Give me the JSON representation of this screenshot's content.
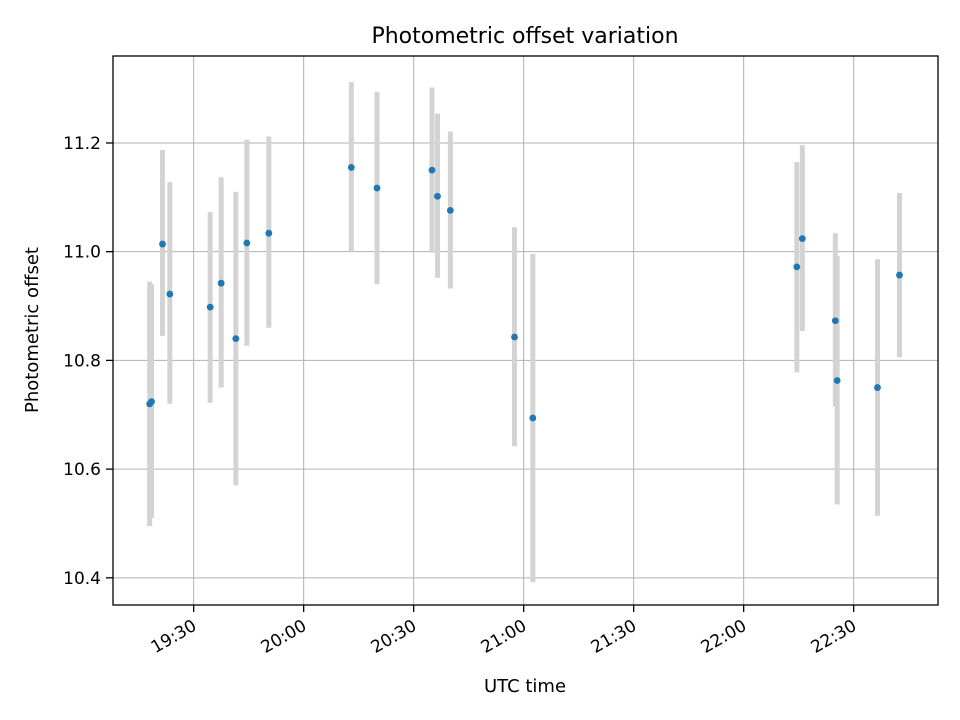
{
  "chart_data": {
    "type": "scatter",
    "title": "Photometric offset variation",
    "xlabel": "UTC time",
    "ylabel": "Photometric offset",
    "x_axis_type": "time",
    "xlim": [
      "19:08",
      "22:53"
    ],
    "ylim": [
      10.35,
      11.36
    ],
    "x_ticks": [
      "19:30",
      "20:00",
      "20:30",
      "21:00",
      "21:30",
      "22:00",
      "22:30"
    ],
    "y_ticks": [
      "10.4",
      "10.6",
      "10.8",
      "11.0",
      "11.2"
    ],
    "grid": true,
    "legend": "none",
    "point_color": "#1f77b4",
    "errorbar_color": "#d3d3d3",
    "series": [
      {
        "points": [
          {
            "x": "19:18:00",
            "y": 10.72,
            "err_low": 10.495,
            "err_high": 10.945
          },
          {
            "x": "19:18:30",
            "y": 10.724,
            "err_low": 10.51,
            "err_high": 10.94
          },
          {
            "x": "19:21:30",
            "y": 11.014,
            "err_low": 10.845,
            "err_high": 11.187
          },
          {
            "x": "19:23:30",
            "y": 10.922,
            "err_low": 10.72,
            "err_high": 11.128
          },
          {
            "x": "19:34:30",
            "y": 10.898,
            "err_low": 10.722,
            "err_high": 11.073
          },
          {
            "x": "19:37:30",
            "y": 10.942,
            "err_low": 10.75,
            "err_high": 11.137
          },
          {
            "x": "19:41:30",
            "y": 10.84,
            "err_low": 10.57,
            "err_high": 11.11
          },
          {
            "x": "19:44:30",
            "y": 11.016,
            "err_low": 10.827,
            "err_high": 11.206
          },
          {
            "x": "19:50:30",
            "y": 11.034,
            "err_low": 10.86,
            "err_high": 11.212
          },
          {
            "x": "20:13:00",
            "y": 11.155,
            "err_low": 11.0,
            "err_high": 11.312
          },
          {
            "x": "20:20:00",
            "y": 11.117,
            "err_low": 10.94,
            "err_high": 11.294
          },
          {
            "x": "20:35:00",
            "y": 11.15,
            "err_low": 10.998,
            "err_high": 11.302
          },
          {
            "x": "20:36:30",
            "y": 11.102,
            "err_low": 10.952,
            "err_high": 11.254
          },
          {
            "x": "20:40:00",
            "y": 11.076,
            "err_low": 10.932,
            "err_high": 11.221
          },
          {
            "x": "20:57:30",
            "y": 10.843,
            "err_low": 10.642,
            "err_high": 11.045
          },
          {
            "x": "21:02:30",
            "y": 10.694,
            "err_low": 10.392,
            "err_high": 10.996
          },
          {
            "x": "22:14:30",
            "y": 10.972,
            "err_low": 10.778,
            "err_high": 11.165
          },
          {
            "x": "22:16:00",
            "y": 11.024,
            "err_low": 10.854,
            "err_high": 11.196
          },
          {
            "x": "22:25:00",
            "y": 10.873,
            "err_low": 10.715,
            "err_high": 11.034
          },
          {
            "x": "22:25:30",
            "y": 10.763,
            "err_low": 10.535,
            "err_high": 10.992
          },
          {
            "x": "22:36:30",
            "y": 10.75,
            "err_low": 10.514,
            "err_high": 10.986
          },
          {
            "x": "22:42:30",
            "y": 10.957,
            "err_low": 10.806,
            "err_high": 11.108
          }
        ]
      }
    ]
  }
}
